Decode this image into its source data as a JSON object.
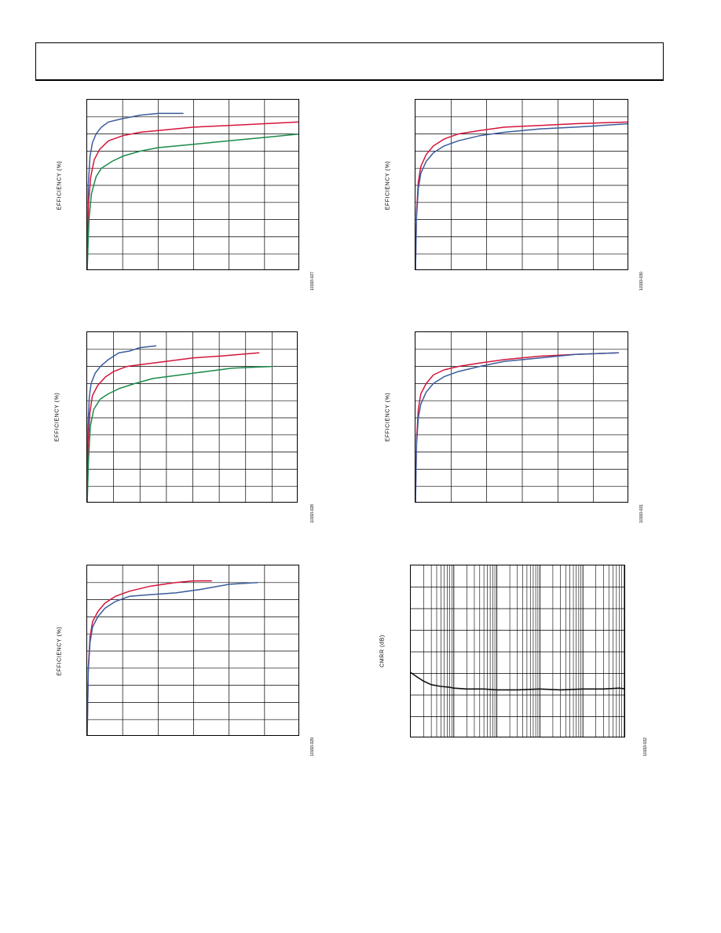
{
  "page": {
    "header_title": ""
  },
  "chart_data": [
    {
      "type": "line",
      "ylabel": "EFFICIENCY (%)",
      "figure_id": "10193-027",
      "xlim": [
        0,
        6
      ],
      "ylim": [
        0,
        100
      ],
      "series": [
        {
          "name": "",
          "color": "#3a5c9c",
          "x": [
            0,
            0.03,
            0.08,
            0.15,
            0.25,
            0.4,
            0.6,
            1.0,
            1.5,
            2.0,
            2.7
          ],
          "y": [
            0,
            50,
            67,
            75,
            80,
            84,
            87,
            89,
            91,
            92,
            92
          ]
        },
        {
          "name": "",
          "color": "#d4143c",
          "x": [
            0,
            0.04,
            0.1,
            0.2,
            0.35,
            0.6,
            1.0,
            1.5,
            2.0,
            3.0,
            4.0,
            5.0,
            6.0
          ],
          "y": [
            0,
            40,
            55,
            65,
            71,
            76,
            79,
            81,
            82,
            84,
            85,
            86,
            87
          ]
        },
        {
          "name": "",
          "color": "#1a8a4a",
          "x": [
            0,
            0.05,
            0.12,
            0.25,
            0.4,
            0.7,
            1.0,
            1.5,
            2.0,
            3.0,
            4.0,
            5.0,
            6.0
          ],
          "y": [
            0,
            30,
            45,
            55,
            60,
            64,
            67,
            70,
            72,
            74,
            76,
            78,
            80
          ]
        }
      ]
    },
    {
      "type": "line",
      "ylabel": "EFFICIENCY (%)",
      "figure_id": "10193-030",
      "xlim": [
        0,
        6
      ],
      "ylim": [
        0,
        100
      ],
      "series": [
        {
          "name": "",
          "color": "#d4143c",
          "x": [
            0,
            0.03,
            0.08,
            0.15,
            0.3,
            0.5,
            0.8,
            1.2,
            1.8,
            2.5,
            3.5,
            4.5,
            6.0
          ],
          "y": [
            0,
            35,
            52,
            61,
            68,
            73,
            77,
            80,
            82,
            84,
            85,
            86,
            87
          ]
        },
        {
          "name": "",
          "color": "#3a5c9c",
          "x": [
            0,
            0.03,
            0.08,
            0.15,
            0.3,
            0.5,
            0.8,
            1.2,
            1.8,
            2.5,
            3.5,
            4.5,
            6.0
          ],
          "y": [
            0,
            32,
            48,
            57,
            64,
            69,
            73,
            76,
            79,
            81,
            83,
            84,
            86
          ]
        }
      ]
    },
    {
      "type": "line",
      "ylabel": "EFFICIENCY (%)",
      "figure_id": "10193-028",
      "xlim": [
        0,
        8
      ],
      "ylim": [
        0,
        100
      ],
      "series": [
        {
          "name": "",
          "color": "#3a5c9c",
          "x": [
            0,
            0.03,
            0.08,
            0.15,
            0.3,
            0.5,
            0.8,
            1.2,
            1.6,
            2.0,
            2.6
          ],
          "y": [
            0,
            45,
            62,
            70,
            76,
            80,
            84,
            88,
            89,
            91,
            92
          ]
        },
        {
          "name": "",
          "color": "#d4143c",
          "x": [
            0,
            0.04,
            0.1,
            0.2,
            0.4,
            0.7,
            1.0,
            1.5,
            2.0,
            3.0,
            4.0,
            5.0,
            6.5
          ],
          "y": [
            0,
            35,
            53,
            63,
            69,
            74,
            77,
            80,
            81,
            83,
            85,
            86,
            88
          ]
        },
        {
          "name": "",
          "color": "#1a8a4a",
          "x": [
            0,
            0.05,
            0.12,
            0.25,
            0.5,
            0.8,
            1.2,
            1.8,
            2.5,
            3.5,
            4.5,
            5.5,
            7.0
          ],
          "y": [
            0,
            25,
            45,
            55,
            61,
            64,
            67,
            70,
            73,
            75,
            77,
            79,
            80
          ]
        }
      ]
    },
    {
      "type": "line",
      "ylabel": "EFFICIENCY (%)",
      "figure_id": "10193-031",
      "xlim": [
        0,
        6
      ],
      "ylim": [
        0,
        100
      ],
      "series": [
        {
          "name": "",
          "color": "#d4143c",
          "x": [
            0,
            0.03,
            0.08,
            0.15,
            0.3,
            0.5,
            0.8,
            1.2,
            1.8,
            2.5,
            3.5,
            4.5,
            5.7
          ],
          "y": [
            0,
            38,
            55,
            64,
            70,
            75,
            78,
            80,
            82,
            84,
            86,
            87,
            88
          ]
        },
        {
          "name": "",
          "color": "#3a5c9c",
          "x": [
            0,
            0.03,
            0.08,
            0.15,
            0.3,
            0.5,
            0.8,
            1.2,
            1.8,
            2.5,
            3.5,
            4.5,
            5.7
          ],
          "y": [
            0,
            35,
            50,
            58,
            65,
            70,
            74,
            77,
            80,
            83,
            85,
            87,
            88
          ]
        }
      ]
    },
    {
      "type": "line",
      "ylabel": "EFFICIENCY (%)",
      "figure_id": "10193-029",
      "xlim": [
        0,
        6
      ],
      "ylim": [
        0,
        100
      ],
      "series": [
        {
          "name": "",
          "color": "#d4143c",
          "x": [
            0,
            0.03,
            0.08,
            0.15,
            0.3,
            0.5,
            0.8,
            1.2,
            1.8,
            2.5,
            3.0,
            3.5
          ],
          "y": [
            0,
            40,
            58,
            67,
            73,
            78,
            82,
            85,
            88,
            90,
            91,
            91
          ]
        },
        {
          "name": "",
          "color": "#3a5c9c",
          "x": [
            0,
            0.03,
            0.08,
            0.15,
            0.3,
            0.5,
            0.8,
            1.2,
            1.8,
            2.5,
            3.2,
            4.0,
            4.8
          ],
          "y": [
            0,
            38,
            55,
            64,
            70,
            75,
            79,
            82,
            83,
            84,
            86,
            89,
            90
          ]
        }
      ]
    },
    {
      "type": "line",
      "ylabel": "CMRR (dB)",
      "figure_id": "10193-032",
      "xscale": "log",
      "xlim": [
        10,
        1000000
      ],
      "ylim": [
        0,
        100
      ],
      "series": [
        {
          "name": "",
          "color": "#111111",
          "x": [
            10,
            15,
            20,
            30,
            50,
            80,
            100,
            200,
            500,
            1000,
            3000,
            10000,
            30000,
            100000,
            300000,
            700000,
            1000000
          ],
          "y": [
            38,
            35,
            33,
            31,
            30,
            29.5,
            29,
            28.5,
            28.5,
            28,
            28,
            28.5,
            28,
            28.5,
            28.5,
            29,
            28.5
          ]
        }
      ]
    }
  ]
}
